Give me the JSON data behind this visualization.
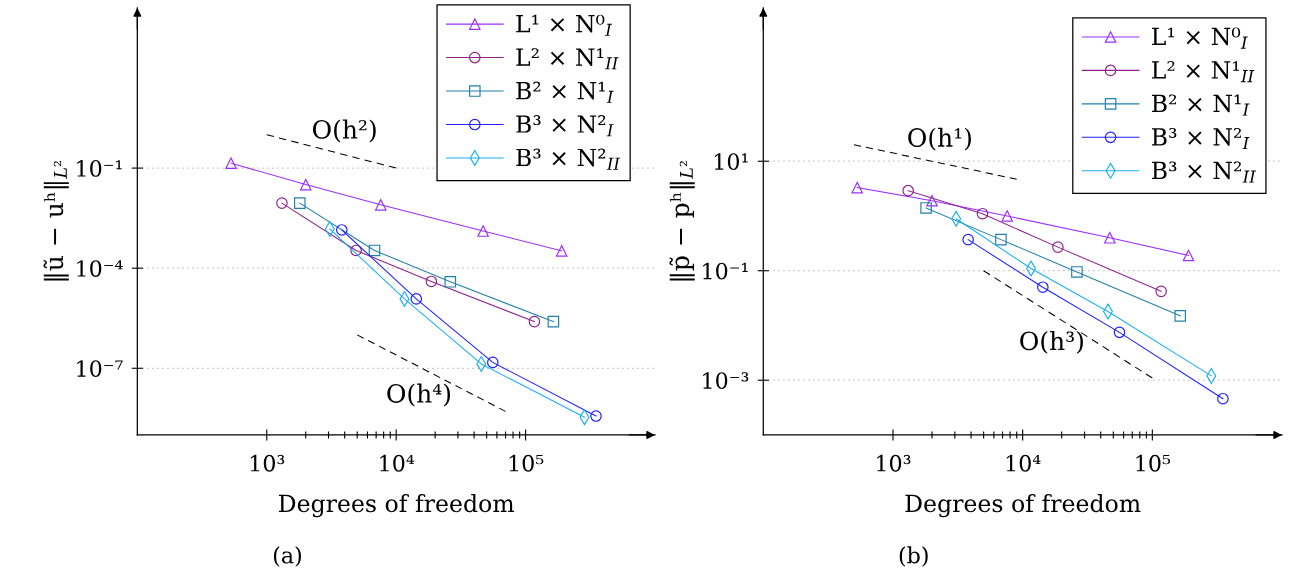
{
  "chart_data": [
    {
      "type": "line",
      "title": "(a)",
      "xlabel": "Degrees of freedom",
      "ylabel": "‖ũ − uʰ‖$_{L²}$",
      "log": "xy",
      "xlim": [
        100,
        1000000
      ],
      "ylim": [
        1e-09,
        6300
      ],
      "xticks": [
        {
          "value": 1000,
          "label": "10³"
        },
        {
          "value": 2000,
          "label": null
        },
        {
          "value": 3000,
          "label": null
        },
        {
          "value": 4000,
          "label": null
        },
        {
          "value": 5000,
          "label": null
        },
        {
          "value": 6000,
          "label": null
        },
        {
          "value": 7000,
          "label": null
        },
        {
          "value": 8000,
          "label": null
        },
        {
          "value": 9000,
          "label": null
        },
        {
          "value": 10000,
          "label": "10⁴"
        },
        {
          "value": 20000,
          "label": null
        },
        {
          "value": 30000,
          "label": null
        },
        {
          "value": 40000,
          "label": null
        },
        {
          "value": 50000,
          "label": null
        },
        {
          "value": 60000,
          "label": null
        },
        {
          "value": 70000,
          "label": null
        },
        {
          "value": 80000,
          "label": null
        },
        {
          "value": 90000,
          "label": null
        },
        {
          "value": 100000,
          "label": "10⁵"
        }
      ],
      "yticks": [
        {
          "value": 0.1,
          "label": "10⁻¹"
        },
        {
          "value": 0.0001,
          "label": "10⁻⁴"
        },
        {
          "value": 1e-07,
          "label": "10⁻⁷"
        }
      ],
      "grid": "y",
      "legend": "top right",
      "series": [
        {
          "name": "L¹ × N⁰$_{I}$",
          "color": "#9b30ff",
          "marker": "triangle",
          "x": [
            530,
            2000,
            7600,
            47000,
            190000
          ],
          "values": [
            0.14,
            0.032,
            0.0079,
            0.0013,
            0.00033
          ]
        },
        {
          "name": "L² × N¹$_{II}$",
          "color": "#8e238e",
          "marker": "circle",
          "x": [
            1310,
            4900,
            18700,
            117000
          ],
          "values": [
            0.0089,
            0.00034,
            4e-05,
            2.5e-06
          ]
        },
        {
          "name": "B² × N¹$_{I}$",
          "color": "#2380a8",
          "marker": "square",
          "x": [
            1800,
            6800,
            26200,
            164000
          ],
          "values": [
            0.0089,
            0.00034,
            3.9e-05,
            2.5e-06
          ]
        },
        {
          "name": "B³ × N²$_{I}$",
          "color": "#1f1fff",
          "marker": "circle",
          "x": [
            3800,
            14300,
            55800,
            350000
          ],
          "values": [
            0.0014,
            1.2e-05,
            1.5e-07,
            3.7e-09
          ]
        },
        {
          "name": "B³ × N²$_{II}$",
          "color": "#1ab0f0",
          "marker": "diamond",
          "x": [
            3070,
            11600,
            45500,
            285000
          ],
          "values": [
            0.0015,
            1.2e-05,
            1.35e-07,
            3.4e-09
          ]
        },
        {
          "type": "line",
          "color": "#000000",
          "marker": "none",
          "line_style": "dashed",
          "x": [
            1000,
            10000
          ],
          "values": [
            1,
            0.1
          ]
        },
        {
          "type": "line",
          "color": "#000000",
          "marker": "none",
          "line_style": "dashed",
          "x": [
            5000,
            70000
          ],
          "values": [
            1e-06,
            5.1e-09
          ]
        }
      ],
      "annotations": [
        {
          "text": "O(h²)",
          "x": 4000,
          "y": 0.25
        },
        {
          "text": "O(h⁴)",
          "x": 15000,
          "y": 1.1e-07
        }
      ]
    },
    {
      "type": "line",
      "title": "(b)",
      "xlabel": "Degrees of freedom",
      "ylabel": "‖p̃ − pʰ‖$_{L²}$",
      "log": "xy",
      "xlim": [
        100,
        1000000
      ],
      "ylim": [
        0.0001,
        6300
      ],
      "xticks": [
        {
          "value": 1000,
          "label": "10³"
        },
        {
          "value": 2000,
          "label": null
        },
        {
          "value": 3000,
          "label": null
        },
        {
          "value": 4000,
          "label": null
        },
        {
          "value": 5000,
          "label": null
        },
        {
          "value": 6000,
          "label": null
        },
        {
          "value": 7000,
          "label": null
        },
        {
          "value": 8000,
          "label": null
        },
        {
          "value": 9000,
          "label": null
        },
        {
          "value": 10000,
          "label": "10⁴"
        },
        {
          "value": 20000,
          "label": null
        },
        {
          "value": 30000,
          "label": null
        },
        {
          "value": 40000,
          "label": null
        },
        {
          "value": 50000,
          "label": null
        },
        {
          "value": 60000,
          "label": null
        },
        {
          "value": 70000,
          "label": null
        },
        {
          "value": 80000,
          "label": null
        },
        {
          "value": 90000,
          "label": null
        },
        {
          "value": 100000,
          "label": "10⁵"
        }
      ],
      "yticks": [
        {
          "value": 10,
          "label": "10¹"
        },
        {
          "value": 0.1,
          "label": "10⁻¹"
        },
        {
          "value": 0.001,
          "label": "10⁻³"
        }
      ],
      "grid": "y",
      "legend": "top right",
      "series": [
        {
          "name": "L¹ × N⁰$_{I}$",
          "color": "#9b30ff",
          "marker": "triangle",
          "x": [
            530,
            2000,
            7600,
            47000,
            190000
          ],
          "values": [
            3.3,
            1.9,
            1.0,
            0.4,
            0.19
          ]
        },
        {
          "name": "L² × N¹$_{II}$",
          "color": "#8e238e",
          "marker": "circle",
          "x": [
            1310,
            4900,
            18700,
            117000
          ],
          "values": [
            2.9,
            1.1,
            0.27,
            0.042
          ]
        },
        {
          "name": "B² × N¹$_{I}$",
          "color": "#2380a8",
          "marker": "square",
          "x": [
            1800,
            6800,
            26200,
            164000
          ],
          "values": [
            1.4,
            0.37,
            0.095,
            0.015
          ]
        },
        {
          "name": "B³ × N²$_{I}$",
          "color": "#1f1fff",
          "marker": "circle",
          "x": [
            3800,
            14300,
            55800,
            350000
          ],
          "values": [
            0.37,
            0.05,
            0.0075,
            0.00046
          ]
        },
        {
          "name": "B³ × N²$_{II}$",
          "color": "#1ab0f0",
          "marker": "diamond",
          "x": [
            3070,
            11600,
            45500,
            285000
          ],
          "values": [
            0.89,
            0.11,
            0.018,
            0.0012
          ]
        },
        {
          "type": "line",
          "color": "#000000",
          "marker": "none",
          "line_style": "dashed",
          "x": [
            500,
            9000
          ],
          "values": [
            20,
            4.7
          ]
        },
        {
          "type": "line",
          "color": "#000000",
          "marker": "none",
          "line_style": "dashed",
          "x": [
            5000,
            100000
          ],
          "values": [
            0.1,
            0.0011
          ]
        }
      ],
      "annotations": [
        {
          "text": "O(h¹)",
          "x": 2300,
          "y": 9.3
        },
        {
          "text": "O(h³)",
          "x": 16800,
          "y": 0.016
        }
      ]
    }
  ]
}
